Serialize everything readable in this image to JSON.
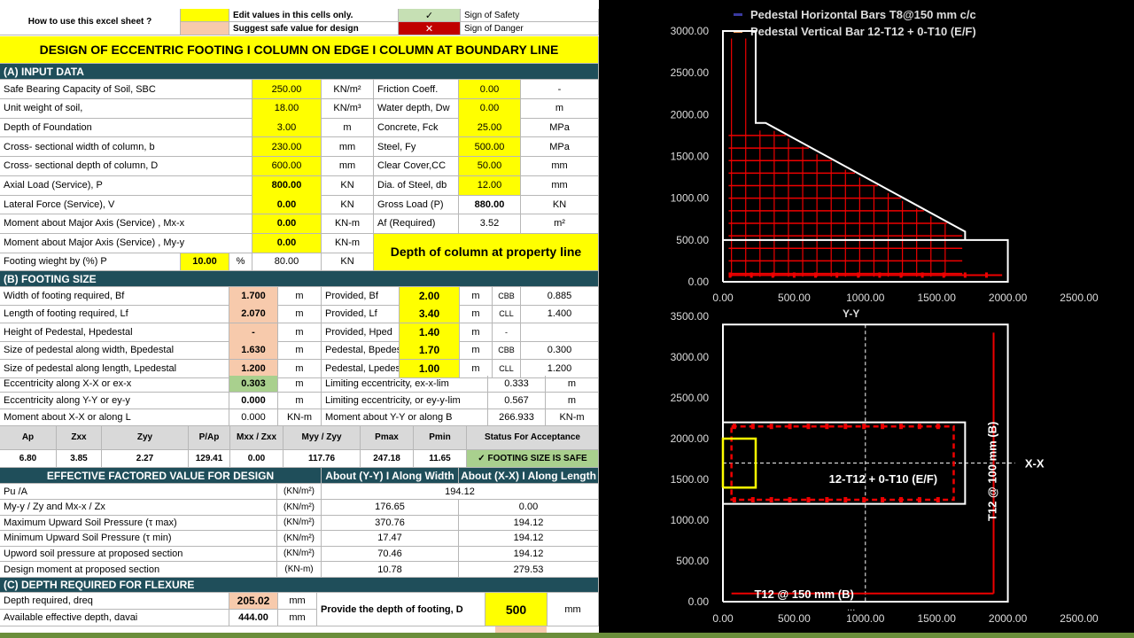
{
  "help": {
    "how_to": "How to use this excel sheet ?",
    "edit_label": "Edit values in this cells only.",
    "suggest_label": "Suggest safe value for design",
    "safety_mark": "✓",
    "danger_mark": "✕",
    "safety_label": "Sign of Safety",
    "danger_label": "Sign of Danger"
  },
  "title": "DESIGN OF ECCENTRIC FOOTING I COLUMN ON EDGE I COLUMN AT BOUNDARY LINE",
  "sectionA": {
    "header": "(A) INPUT DATA",
    "rows": [
      {
        "label": "Safe Bearing Capacity of Soil, SBC",
        "value": "250.00",
        "unit": "KN/m²",
        "label2": "Friction Coeff.",
        "value2": "0.00",
        "unit2": "-"
      },
      {
        "label": "Unit weight of soil,",
        "value": "18.00",
        "unit": "KN/m³",
        "label2": "Water depth, Dw",
        "value2": "0.00",
        "unit2": "m"
      },
      {
        "label": "Depth of Foundation",
        "value": "3.00",
        "unit": "m",
        "label2": "Concrete, Fck",
        "value2": "25.00",
        "unit2": "MPa"
      },
      {
        "label": "Cross- sectional width of column, b",
        "value": "230.00",
        "unit": "mm",
        "label2": "Steel, Fy",
        "value2": "500.00",
        "unit2": "MPa"
      },
      {
        "label": "Cross- sectional depth of column, D",
        "value": "600.00",
        "unit": "mm",
        "label2": "Clear Cover,CC",
        "value2": "50.00",
        "unit2": "mm"
      },
      {
        "label": "Axial Load (Service), P",
        "value": "800.00",
        "unit": "KN",
        "label2": "Dia. of Steel, db",
        "value2": "12.00",
        "unit2": "mm"
      },
      {
        "label": "Lateral Force (Service), V",
        "value": "0.00",
        "unit": "KN",
        "label2": "Gross Load (P)",
        "value2": "880.00",
        "unit2": "KN"
      },
      {
        "label": "Moment about Major Axis (Service) , Mx-x",
        "value": "0.00",
        "unit": "KN-m",
        "label2": "Af (Required)",
        "value2": "3.52",
        "unit2": "m²"
      },
      {
        "label": "Moment about Major Axis (Service) , My-y",
        "value": "0.00",
        "unit": "KN-m"
      }
    ],
    "footing_weight_label": "Footing wieght by (%) P",
    "footing_weight_pct": "10.00",
    "footing_weight_pct_unit": "%",
    "footing_weight_value": "80.00",
    "footing_weight_unit": "KN",
    "property_line_note": "Depth of column at property line"
  },
  "sectionB": {
    "header": "(B) FOOTING SIZE",
    "rows": [
      {
        "label": "Width of footing required, Bf",
        "value": "1.700",
        "unit": "m",
        "label2": "Provided, Bf",
        "value2": "2.00",
        "unit2": "m",
        "label3": "CBB",
        "value3": "0.885"
      },
      {
        "label": "Length of footing required, Lf",
        "value": "2.070",
        "unit": "m",
        "label2": "Provided, Lf",
        "value2": "3.40",
        "unit2": "m",
        "label3": "CLL",
        "value3": "1.400"
      },
      {
        "label": "Height of Pedestal, Hpedestal",
        "value": "-",
        "unit": "m",
        "label2": "Provided, Hped",
        "value2": "1.40",
        "unit2": "m",
        "label3": "-",
        "value3": ""
      },
      {
        "label": "Size of pedestal along width, Bpedestal",
        "value": "1.630",
        "unit": "m",
        "label2": "Pedestal, Bpedestal",
        "value2": "1.70",
        "unit2": "m",
        "label3": "CBB",
        "value3": "0.300"
      },
      {
        "label": "Size of pedestal along length, Lpedestal",
        "value": "1.200",
        "unit": "m",
        "label2": "Pedestal, Lpedestal",
        "value2": "1.00",
        "unit2": "m",
        "label3": "CLL",
        "value3": "1.200"
      }
    ],
    "ecc_rows": [
      {
        "label": "Eccentricity along X-X or ex-x",
        "value": "0.303",
        "unit": "m",
        "label2": "Limiting eccentricity, ex-x-lim",
        "value2": "0.333",
        "unit2": "m"
      },
      {
        "label": "Eccentricity along Y-Y or ey-y",
        "value": "0.000",
        "unit": "m",
        "label2": "Limiting eccentricity, or ey-y-lim",
        "value2": "0.567",
        "unit2": "m"
      },
      {
        "label": "Moment about X-X or along L",
        "value": "0.000",
        "unit": "KN-m",
        "label2": "Moment about Y-Y or along B",
        "value2": "266.933",
        "unit2": "KN-m"
      }
    ],
    "summary_headers": [
      "Ap",
      "Zxx",
      "Zyy",
      "P/Ap",
      "Mxx / Zxx",
      "Myy / Zyy",
      "Pmax",
      "Pmin",
      "Status For Acceptance"
    ],
    "summary_values": [
      "6.80",
      "3.85",
      "2.27",
      "129.41",
      "0.00",
      "117.76",
      "247.18",
      "11.65",
      "✓ FOOTING SIZE IS SAFE"
    ]
  },
  "effective": {
    "header": "EFFECTIVE FACTORED VALUE FOR DESIGN",
    "col_yy": "About (Y-Y) I Along Width",
    "col_xx": "About (X-X) I Along Length",
    "rows": [
      {
        "label": "Pu /A",
        "unit": "(KN/m²)",
        "merged": "194.12"
      },
      {
        "label": "My-y / Zy and Mx-x / Zx",
        "unit": "(KN/m²)",
        "yy": "176.65",
        "xx": "0.00"
      },
      {
        "label": "Maximum Upward Soil Pressure (τ max)",
        "unit": "(KN/m²)",
        "yy": "370.76",
        "xx": "194.12"
      },
      {
        "label": "Minimum Upward Soil Pressure (τ min)",
        "unit": "(KN/m²)",
        "yy": "17.47",
        "xx": "194.12"
      },
      {
        "label": "Upword soil pressure at proposed section",
        "unit": "(KN/m²)",
        "yy": "70.46",
        "xx": "194.12"
      },
      {
        "label": "Design moment at proposed section",
        "unit": "(KN-m)",
        "yy": "10.78",
        "xx": "279.53"
      }
    ]
  },
  "sectionC": {
    "header": "(C) DEPTH REQUIRED FOR FLEXURE",
    "depth_req_label": "Depth required, dreq",
    "depth_req_value": "205.02",
    "depth_req_unit": "mm",
    "avail_label": "Available effective depth, davai",
    "avail_value": "444.00",
    "avail_unit": "mm",
    "provide_label": "Provide the depth of footing, D",
    "provide_value": "500",
    "provide_unit": "mm"
  },
  "chart_data": [
    {
      "type": "scatter",
      "title": "",
      "legend": [
        "Pedestal Horizontal Bars T8@150 mm c/c",
        "Pedestal Vertical Bar 12-T12 + 0-T10 (E/F)"
      ],
      "legend_colors": [
        "#3a3aa0",
        "#f4a060"
      ],
      "xlim": [
        0,
        2500
      ],
      "ylim": [
        0,
        3000
      ],
      "xticks": [
        "0.00",
        "500.00",
        "1000.00",
        "1500.00",
        "2000.00",
        "2500.00"
      ],
      "yticks": [
        "0.00",
        "500.00",
        "1000.00",
        "1500.00",
        "2000.00",
        "2500.00",
        "3000.00"
      ],
      "footing_outline": [
        [
          0,
          0
        ],
        [
          2000,
          0
        ],
        [
          2000,
          500
        ],
        [
          0,
          500
        ],
        [
          0,
          0
        ]
      ],
      "pedestal_outline": [
        [
          0,
          500
        ],
        [
          0,
          3000
        ],
        [
          230,
          3000
        ],
        [
          230,
          1900
        ],
        [
          300,
          1900
        ],
        [
          1700,
          600
        ],
        [
          1700,
          500
        ]
      ],
      "xlabel": "Y-Y"
    },
    {
      "type": "scatter",
      "title": "",
      "xlim": [
        0,
        2500
      ],
      "ylim": [
        0,
        3500
      ],
      "xticks": [
        "0.00",
        "500.00",
        "1000.00",
        "1500.00",
        "2000.00",
        "2500.00"
      ],
      "yticks": [
        "0.00",
        "500.00",
        "1000.00",
        "1500.00",
        "2000.00",
        "2500.00",
        "3000.00",
        "3500.00"
      ],
      "footing_outline": [
        [
          0,
          0
        ],
        [
          2000,
          0
        ],
        [
          2000,
          3400
        ],
        [
          0,
          3400
        ],
        [
          0,
          0
        ]
      ],
      "pedestal_outline": [
        [
          0,
          1200
        ],
        [
          1700,
          1200
        ],
        [
          1700,
          2200
        ],
        [
          0,
          2200
        ],
        [
          0,
          1200
        ]
      ],
      "column_outline": [
        [
          0,
          1400
        ],
        [
          230,
          1400
        ],
        [
          230,
          2000
        ],
        [
          0,
          2000
        ],
        [
          0,
          1400
        ]
      ],
      "labels": {
        "axis_xx": "X-X",
        "pedestal_bars": "12-T12 + 0-T10 (E/F)",
        "bottom_bars": "T12 @ 150 mm (B)",
        "vertical_bars": "T12 @ 100 mm (B)",
        "dots": "..."
      }
    }
  ]
}
